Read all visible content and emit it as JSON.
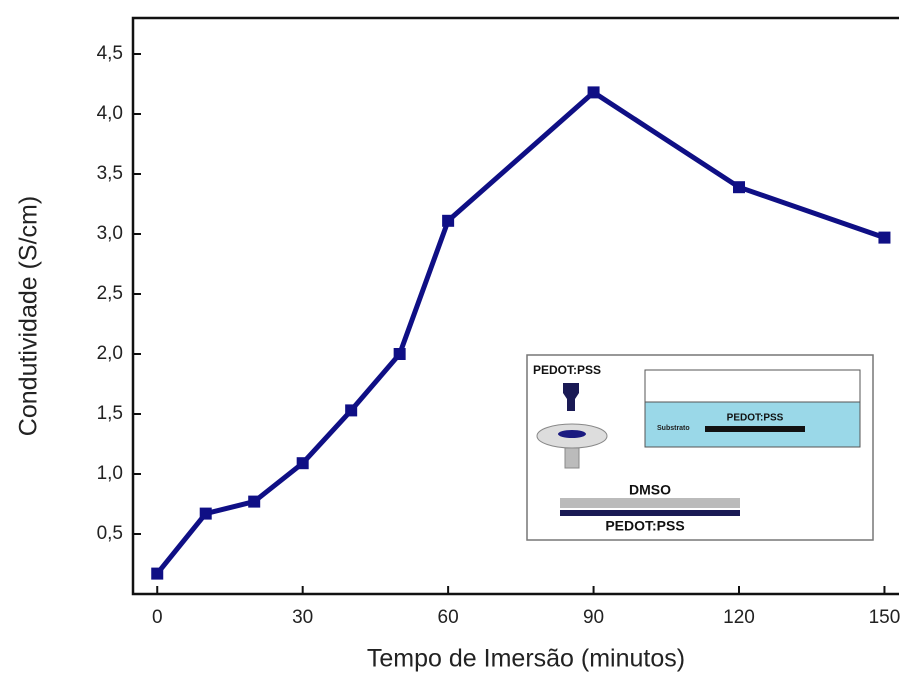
{
  "chart_data": {
    "type": "line",
    "x_label": "Tempo de Imersão (minutos)",
    "y_label": "Condutividade (S/cm)",
    "x": [
      0,
      10,
      20,
      30,
      40,
      50,
      60,
      90,
      120,
      150
    ],
    "series": [
      {
        "color": "#0f0f85",
        "values": [
          0.17,
          0.67,
          0.77,
          1.09,
          1.53,
          2.0,
          3.11,
          4.18,
          3.39,
          2.97
        ]
      }
    ],
    "xlim": [
      -5,
      153
    ],
    "ylim": [
      0,
      4.8
    ],
    "xticks": [
      0,
      30,
      60,
      90,
      120,
      150
    ],
    "yticks": [
      {
        "value": 0.5,
        "label": "0,5"
      },
      {
        "value": 1.0,
        "label": "1,0"
      },
      {
        "value": 1.5,
        "label": "1,5"
      },
      {
        "value": 2.0,
        "label": "2,0"
      },
      {
        "value": 2.5,
        "label": "2,5"
      },
      {
        "value": 3.0,
        "label": "3,0"
      },
      {
        "value": 3.5,
        "label": "3,5"
      },
      {
        "value": 4.0,
        "label": "4,0"
      },
      {
        "value": 4.5,
        "label": "4,5"
      }
    ],
    "inset_labels": [
      "PEDOT:PSS",
      "Substrato",
      "PEDOT:PSS",
      "DMSO",
      "PEDOT:PSS"
    ]
  }
}
